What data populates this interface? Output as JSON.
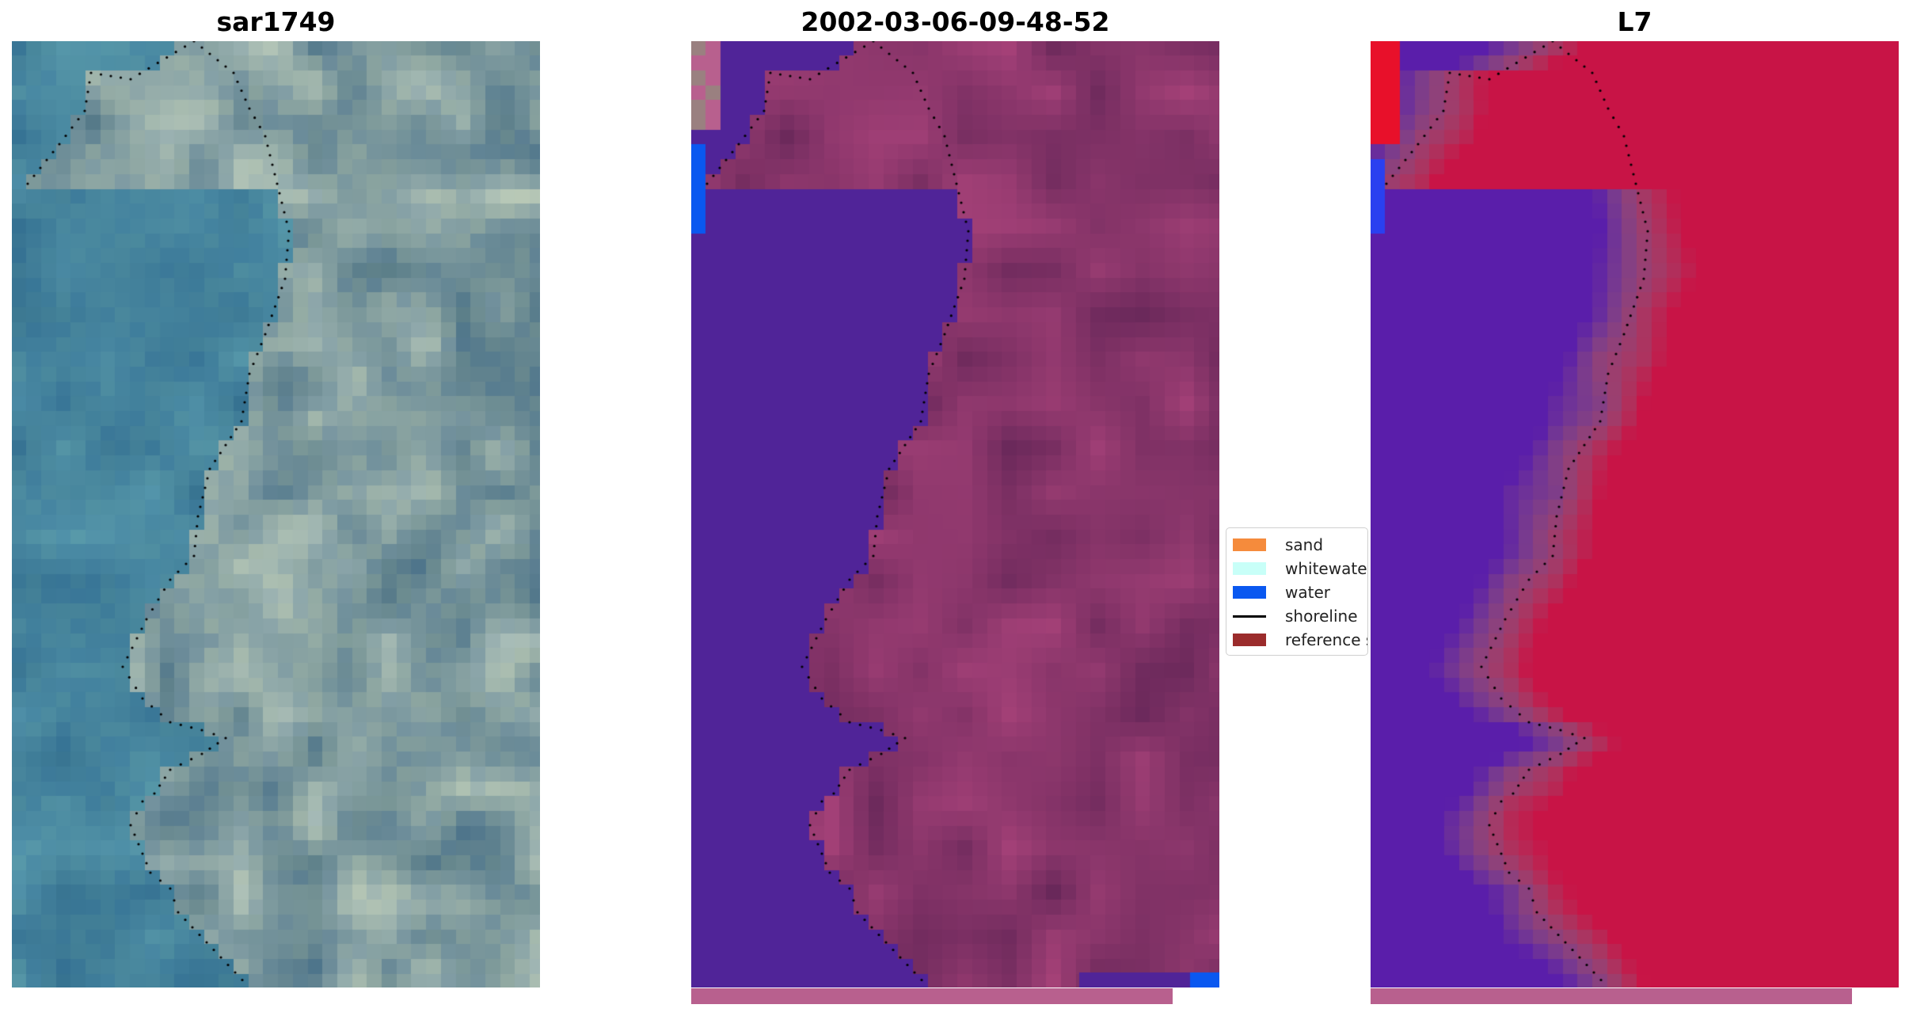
{
  "panels": [
    {
      "id": "rgb",
      "title": "sar1749"
    },
    {
      "id": "classified",
      "title": "2002-03-06-09-48-52"
    },
    {
      "id": "index",
      "title": "L7"
    }
  ],
  "legend": {
    "items": [
      {
        "label": "sand",
        "color": "#f58b3c",
        "kind": "patch"
      },
      {
        "label": "whitewater",
        "color": "#c8fff8",
        "kind": "patch"
      },
      {
        "label": "water",
        "color": "#0a58f0",
        "kind": "patch"
      },
      {
        "label": "shoreline",
        "color": "#000000",
        "kind": "line"
      },
      {
        "label": "reference shoreline",
        "color": "#9b2c2c",
        "kind": "patch"
      }
    ]
  },
  "colors": {
    "water_class": "#502498",
    "land_class": "#70305f",
    "strip": "#b8608e",
    "shoreline": "#000000"
  }
}
